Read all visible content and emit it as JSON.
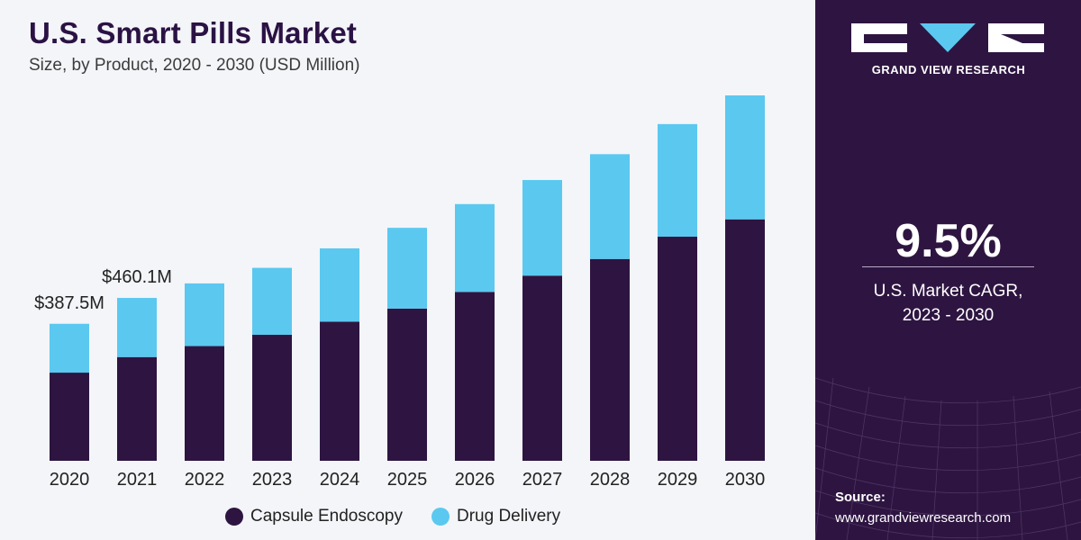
{
  "title": "U.S. Smart Pills Market",
  "subtitle": "Size, by Product, 2020 - 2030 (USD Million)",
  "colors": {
    "capsule": "#2e1541",
    "drug": "#5bc8f0",
    "panel": "#2e1541"
  },
  "chart_data": {
    "type": "bar",
    "stacked": true,
    "categories": [
      "2020",
      "2021",
      "2022",
      "2023",
      "2024",
      "2025",
      "2026",
      "2027",
      "2028",
      "2029",
      "2030"
    ],
    "series": [
      {
        "name": "Capsule Endoscopy",
        "values": [
          249,
          293,
          324,
          356,
          393,
          430,
          477,
          523,
          570,
          633,
          682
        ]
      },
      {
        "name": "Drug Delivery",
        "values": [
          138,
          167,
          177,
          189,
          207,
          228,
          248,
          270,
          296,
          318,
          350
        ]
      }
    ],
    "data_labels": [
      {
        "category": "2020",
        "text": "$387.5M"
      },
      {
        "category": "2021",
        "text": "$460.1M"
      }
    ],
    "title": "U.S. Smart Pills Market",
    "subtitle": "Size, by Product, 2020 - 2030 (USD Million)",
    "ylim": [
      0,
      1060
    ],
    "grid": false,
    "legend_position": "bottom"
  },
  "side": {
    "brand": "GRAND VIEW RESEARCH",
    "cagr_value": "9.5%",
    "cagr_label_line1": "U.S. Market CAGR,",
    "cagr_label_line2": "2023 - 2030",
    "source_title": "Source:",
    "source_url": "www.grandviewresearch.com"
  }
}
